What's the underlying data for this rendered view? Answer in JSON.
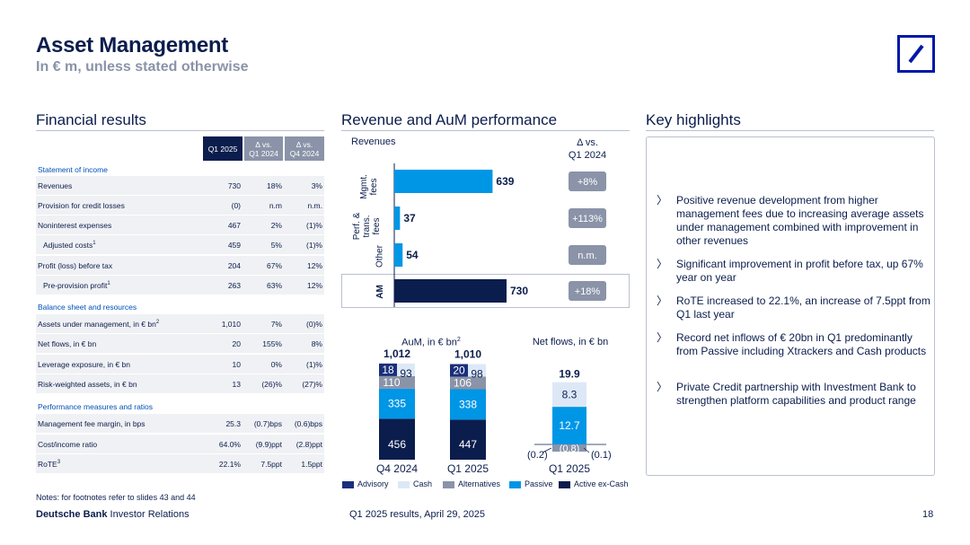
{
  "header": {
    "title": "Asset Management",
    "subtitle": "In € m, unless stated otherwise"
  },
  "financial": {
    "title": "Financial results",
    "columns": [
      "Q1 2025",
      "Δ vs. Q1 2024",
      "Δ vs. Q4 2024"
    ],
    "col_q1_2025": "Q1 2025",
    "col_vs_q1_a": "Δ vs.",
    "col_vs_q1_b": "Q1 2024",
    "col_vs_q4_a": "Δ vs.",
    "col_vs_q4_b": "Q4 2024",
    "groups": {
      "income": "Statement of income",
      "balance": "Balance sheet and resources",
      "performance": "Performance measures and ratios"
    },
    "rows": [
      {
        "label": "Revenues",
        "sup": "",
        "v1": "730",
        "v2": "18%",
        "v3": "3%"
      },
      {
        "label": "Provision for credit losses",
        "sup": "",
        "v1": "(0)",
        "v2": "n.m",
        "v3": "n.m."
      },
      {
        "label": "Noninterest expenses",
        "sup": "",
        "v1": "467",
        "v2": "2%",
        "v3": "(1)%"
      },
      {
        "label": "Adjusted costs",
        "sup": "1",
        "v1": "459",
        "v2": "5%",
        "v3": "(1)%"
      },
      {
        "label": "Profit (loss) before tax",
        "sup": "",
        "v1": "204",
        "v2": "67%",
        "v3": "12%"
      },
      {
        "label": "Pre-provision profit",
        "sup": "1",
        "v1": "263",
        "v2": "63%",
        "v3": "12%"
      },
      {
        "label": "Assets under management, in € bn",
        "sup": "2",
        "v1": "1,010",
        "v2": "7%",
        "v3": "(0)%"
      },
      {
        "label": "Net flows, in € bn",
        "sup": "",
        "v1": "20",
        "v2": "155%",
        "v3": "8%"
      },
      {
        "label": "Leverage exposure, in € bn",
        "sup": "",
        "v1": "10",
        "v2": "0%",
        "v3": "(1)%"
      },
      {
        "label": "Risk-weighted assets, in € bn",
        "sup": "",
        "v1": "13",
        "v2": "(26)%",
        "v3": "(27)%"
      },
      {
        "label": "Management fee margin, in bps",
        "sup": "",
        "v1": "25.3",
        "v2": "(0.7)bps",
        "v3": "(0.6)bps"
      },
      {
        "label": "Cost/income ratio",
        "sup": "",
        "v1": "64.0%",
        "v2": "(9.9)ppt",
        "v3": "(2.8)ppt"
      },
      {
        "label": "RoTE",
        "sup": "3",
        "v1": "22.1%",
        "v2": "7.5ppt",
        "v3": "1.5ppt"
      }
    ]
  },
  "revenue": {
    "title": "Revenue and AuM performance",
    "revenues_label": "Revenues",
    "delta_a": "Δ vs.",
    "delta_b": "Q1 2024",
    "mgmt_a": "Mgmt.",
    "mgmt_b": "fees",
    "perf_a": "Perf. &",
    "perf_b": "trans.",
    "perf_c": "fees",
    "other": "Other",
    "am": "AM"
  },
  "aum": {
    "title": "AuM, in € bn",
    "title_sup": "2",
    "netflows_title": "Net flows, in € bn"
  },
  "chart_data": [
    {
      "type": "bar",
      "categories": [
        "Mgmt. fees",
        "Perf. & trans. fees",
        "Other",
        "AM"
      ],
      "values": [
        639,
        37,
        54,
        730
      ],
      "value_labels": [
        "639",
        "37",
        "54",
        "730"
      ],
      "deltas": [
        "+8%",
        "+113%",
        "n.m.",
        "+18%"
      ],
      "orientation": "horizontal"
    },
    {
      "type": "bar",
      "stacked": true,
      "title": "AuM, in € bn",
      "categories": [
        "Q4 2024",
        "Q1 2025"
      ],
      "totals": [
        "1,012",
        "1,010"
      ],
      "series": [
        {
          "name": "Active ex-Cash",
          "values": [
            456,
            447
          ],
          "color": "#0b1d4d"
        },
        {
          "name": "Passive",
          "values": [
            335,
            338
          ],
          "color": "#0096e6"
        },
        {
          "name": "Alternatives",
          "values": [
            110,
            106
          ],
          "color": "#8a93a8"
        },
        {
          "name": "Cash",
          "values": [
            93,
            98
          ],
          "color": "#dde8f7"
        },
        {
          "name": "Advisory",
          "values": [
            18,
            20
          ],
          "color": "#1a2f7a"
        }
      ]
    },
    {
      "type": "bar",
      "stacked": true,
      "title": "Net flows, in € bn",
      "categories": [
        "Q1 2025"
      ],
      "totals": [
        "19.9"
      ],
      "series": [
        {
          "name": "Cash",
          "values": [
            8.3
          ],
          "color": "#dde8f7"
        },
        {
          "name": "Passive",
          "values": [
            12.7
          ],
          "color": "#0096e6"
        },
        {
          "name": "Alternatives",
          "values": [
            -0.8
          ],
          "color": "#8a93a8"
        },
        {
          "name": "Advisory",
          "values": [
            -0.2
          ],
          "color": "#1a2f7a"
        },
        {
          "name": "Active ex-Cash",
          "values": [
            -0.1
          ],
          "color": "#0b1d4d"
        }
      ],
      "labels": {
        "passive": "12.7",
        "cash": "8.3",
        "alt": "(0.8)",
        "adv": "(0.2)",
        "act": "(0.1)"
      }
    }
  ],
  "legend": [
    {
      "name": "Advisory",
      "color": "#1a2f7a"
    },
    {
      "name": "Cash",
      "color": "#dde8f7"
    },
    {
      "name": "Alternatives",
      "color": "#8a93a8"
    },
    {
      "name": "Passive",
      "color": "#0096e6"
    },
    {
      "name": "Active ex-Cash",
      "color": "#0b1d4d"
    }
  ],
  "highlights": {
    "title": "Key highlights",
    "chevron": "〉",
    "items": [
      "Positive revenue development from higher management fees due to increasing average assets under management combined with improvement in other revenues",
      "Significant improvement in profit before tax, up 67% year on year",
      "RoTE increased to 22.1%, an increase of 7.5ppt from Q1 last year",
      "Record net inflows of € 20bn in Q1 predominantly from Passive including Xtrackers and Cash products",
      "Private Credit partnership with Investment Bank to strengthen platform capabilities and product range"
    ]
  },
  "footer": {
    "notes": "Notes: for footnotes refer to slides 43 and 44",
    "brand_bold": "Deutsche Bank",
    "brand_rest": " Investor Relations",
    "center": "Q1 2025 results, April 29, 2025",
    "page": "18"
  }
}
